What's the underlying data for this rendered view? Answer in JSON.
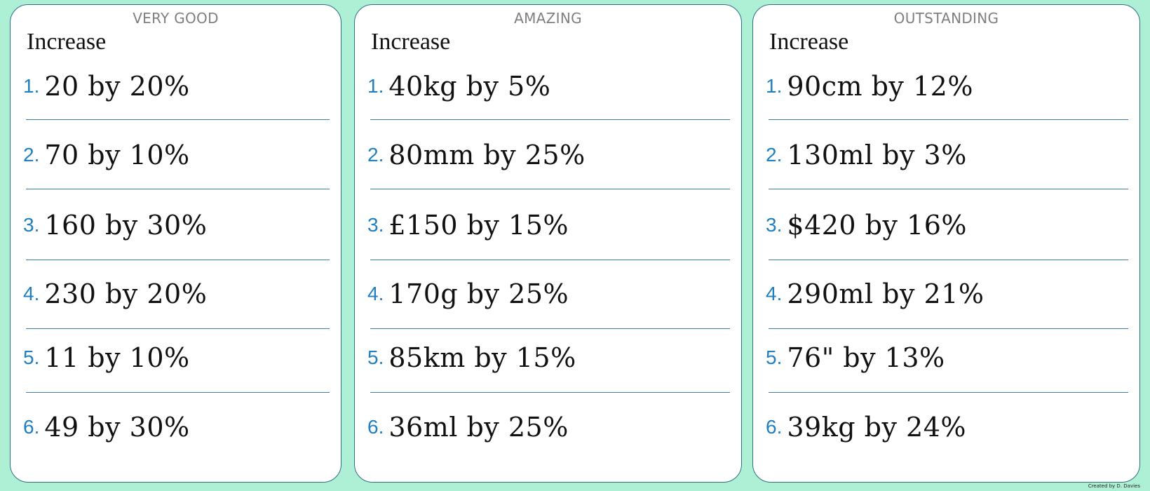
{
  "panels": [
    {
      "level": "VERY GOOD",
      "instruction": "Increase",
      "questions": [
        {
          "num": "1.",
          "text": "20 by 20%"
        },
        {
          "num": "2.",
          "text": "70 by 10%"
        },
        {
          "num": "3.",
          "text": "160 by 30%"
        },
        {
          "num": "4.",
          "text": "230 by 20%"
        },
        {
          "num": "5.",
          "text": "11 by 10%"
        },
        {
          "num": "6.",
          "text": "49 by 30%"
        }
      ]
    },
    {
      "level": "AMAZING",
      "instruction": "Increase",
      "questions": [
        {
          "num": "1.",
          "text": "40kg by 5%"
        },
        {
          "num": "2.",
          "text": "80mm by 25%"
        },
        {
          "num": "3.",
          "text": "£150 by 15%"
        },
        {
          "num": "4.",
          "text": "170g by 25%"
        },
        {
          "num": "5.",
          "text": "85km by 15%"
        },
        {
          "num": "6.",
          "text": "36ml by 25%"
        }
      ]
    },
    {
      "level": "OUTSTANDING",
      "instruction": "Increase",
      "questions": [
        {
          "num": "1.",
          "text": "90cm by 12%"
        },
        {
          "num": "2.",
          "text": "130ml by 3%"
        },
        {
          "num": "3.",
          "text": "$420 by 16%"
        },
        {
          "num": "4.",
          "text": "290ml by 21%"
        },
        {
          "num": "5.",
          "text": "76\" by 13%"
        },
        {
          "num": "6.",
          "text": "39kg by 24%"
        }
      ]
    }
  ],
  "credit": "Created by D. Davies"
}
